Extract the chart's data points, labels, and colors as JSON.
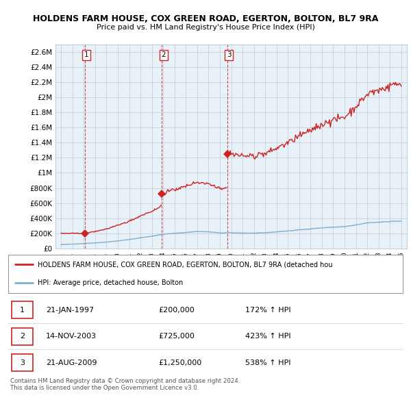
{
  "title1": "HOLDENS FARM HOUSE, COX GREEN ROAD, EGERTON, BOLTON, BL7 9RA",
  "title2": "Price paid vs. HM Land Registry's House Price Index (HPI)",
  "purchases": [
    {
      "label": "1",
      "date_year": 1997.07,
      "price": 200000
    },
    {
      "label": "2",
      "date_year": 2003.88,
      "price": 725000
    },
    {
      "label": "3",
      "date_year": 2009.65,
      "price": 1250000
    }
  ],
  "hpi_line_color": "#7bafd4",
  "price_line_color": "#cc2222",
  "bg_color": "#e8f0f8",
  "legend_line1": "HOLDENS FARM HOUSE, COX GREEN ROAD, EGERTON, BOLTON, BL7 9RA (detached hou",
  "legend_line2": "HPI: Average price, detached house, Bolton",
  "table_rows": [
    [
      "1",
      "21-JAN-1997",
      "£200,000",
      "172% ↑ HPI"
    ],
    [
      "2",
      "14-NOV-2003",
      "£725,000",
      "423% ↑ HPI"
    ],
    [
      "3",
      "21-AUG-2009",
      "£1,250,000",
      "538% ↑ HPI"
    ]
  ],
  "footer": "Contains HM Land Registry data © Crown copyright and database right 2024.\nThis data is licensed under the Open Government Licence v3.0.",
  "ylim": [
    0,
    2700000
  ],
  "yticks": [
    0,
    200000,
    400000,
    600000,
    800000,
    1000000,
    1200000,
    1400000,
    1600000,
    1800000,
    2000000,
    2200000,
    2400000,
    2600000
  ],
  "ytick_labels": [
    "£0",
    "£200K",
    "£400K",
    "£600K",
    "£800K",
    "£1M",
    "£1.2M",
    "£1.4M",
    "£1.6M",
    "£1.8M",
    "£2M",
    "£2.2M",
    "£2.4M",
    "£2.6M"
  ],
  "xlim": [
    1994.5,
    2025.5
  ],
  "xtick_years": [
    1995,
    1996,
    1997,
    1998,
    1999,
    2000,
    2001,
    2002,
    2003,
    2004,
    2005,
    2006,
    2007,
    2008,
    2009,
    2010,
    2011,
    2012,
    2013,
    2014,
    2015,
    2016,
    2017,
    2018,
    2019,
    2020,
    2021,
    2022,
    2023,
    2024,
    2025
  ]
}
